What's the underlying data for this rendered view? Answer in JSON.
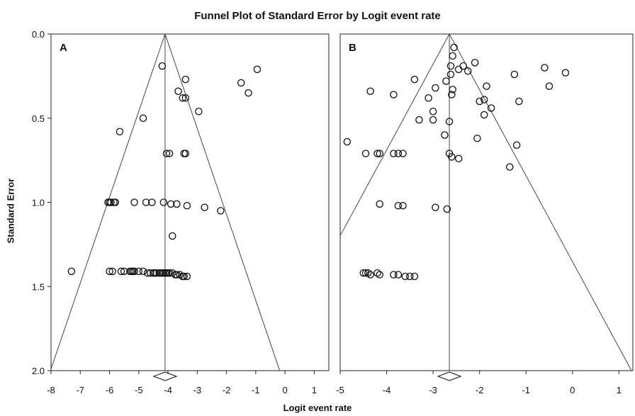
{
  "chart_data": {
    "type": "scatter",
    "title": "Funnel Plot of Standard Error by Logit event rate",
    "xlabel": "Logit event rate",
    "ylabel": "Standard Error",
    "ylim": [
      0.0,
      2.0
    ],
    "y_reversed": true,
    "y_ticks": [
      "0.0",
      "0.5",
      "1.0",
      "1.5",
      "2.0"
    ],
    "grid": false,
    "panels": [
      {
        "label": "A",
        "xlim": [
          -8,
          1.5
        ],
        "x_ticks": [
          "-8",
          "-7",
          "-6",
          "-5",
          "-4",
          "-3",
          "-2",
          "-1",
          "0",
          "1"
        ],
        "tick_values": [
          -8,
          -7,
          -6,
          -5,
          -4,
          -3,
          -2,
          -1,
          0,
          1
        ],
        "pooled_estimate": -4.1,
        "points": [
          [
            -4.2,
            0.19
          ],
          [
            -3.4,
            0.27
          ],
          [
            -1.5,
            0.29
          ],
          [
            -0.95,
            0.21
          ],
          [
            -1.25,
            0.35
          ],
          [
            -3.65,
            0.34
          ],
          [
            -3.5,
            0.38
          ],
          [
            -3.4,
            0.38
          ],
          [
            -2.95,
            0.46
          ],
          [
            -4.85,
            0.5
          ],
          [
            -5.65,
            0.58
          ],
          [
            -4.05,
            0.71
          ],
          [
            -3.95,
            0.71
          ],
          [
            -3.45,
            0.71
          ],
          [
            -3.4,
            0.71
          ],
          [
            -6.05,
            1.0
          ],
          [
            -6.0,
            1.0
          ],
          [
            -5.95,
            1.0
          ],
          [
            -5.85,
            1.0
          ],
          [
            -5.8,
            1.0
          ],
          [
            -5.15,
            1.0
          ],
          [
            -4.75,
            1.0
          ],
          [
            -4.55,
            1.0
          ],
          [
            -4.15,
            1.0
          ],
          [
            -3.9,
            1.01
          ],
          [
            -3.7,
            1.01
          ],
          [
            -3.35,
            1.02
          ],
          [
            -2.75,
            1.03
          ],
          [
            -2.2,
            1.05
          ],
          [
            -3.85,
            1.2
          ],
          [
            -7.3,
            1.41
          ],
          [
            -6.0,
            1.41
          ],
          [
            -5.9,
            1.41
          ],
          [
            -5.6,
            1.41
          ],
          [
            -5.5,
            1.41
          ],
          [
            -5.3,
            1.41
          ],
          [
            -5.25,
            1.41
          ],
          [
            -5.2,
            1.41
          ],
          [
            -5.15,
            1.41
          ],
          [
            -5.0,
            1.41
          ],
          [
            -4.85,
            1.41
          ],
          [
            -4.7,
            1.42
          ],
          [
            -4.6,
            1.42
          ],
          [
            -4.5,
            1.42
          ],
          [
            -4.45,
            1.42
          ],
          [
            -4.4,
            1.42
          ],
          [
            -4.3,
            1.42
          ],
          [
            -4.25,
            1.42
          ],
          [
            -4.2,
            1.42
          ],
          [
            -4.15,
            1.42
          ],
          [
            -4.1,
            1.42
          ],
          [
            -4.05,
            1.42
          ],
          [
            -4.0,
            1.42
          ],
          [
            -3.95,
            1.42
          ],
          [
            -3.85,
            1.42
          ],
          [
            -3.75,
            1.43
          ],
          [
            -3.7,
            1.43
          ],
          [
            -3.6,
            1.43
          ],
          [
            -3.5,
            1.44
          ],
          [
            -3.45,
            1.44
          ],
          [
            -3.35,
            1.44
          ]
        ]
      },
      {
        "label": "B",
        "xlim": [
          -5,
          1.3
        ],
        "x_ticks": [
          "-5",
          "-4",
          "-3",
          "-2",
          "-1",
          "0",
          "1"
        ],
        "tick_values": [
          -5,
          -4,
          -3,
          -2,
          -1,
          0,
          1
        ],
        "pooled_estimate": -2.65,
        "points": [
          [
            -2.55,
            0.08
          ],
          [
            -2.58,
            0.13
          ],
          [
            -2.62,
            0.19
          ],
          [
            -2.35,
            0.19
          ],
          [
            -2.1,
            0.17
          ],
          [
            -2.25,
            0.22
          ],
          [
            -2.45,
            0.21
          ],
          [
            -2.62,
            0.24
          ],
          [
            -2.72,
            0.28
          ],
          [
            -3.4,
            0.27
          ],
          [
            -2.58,
            0.33
          ],
          [
            -2.6,
            0.36
          ],
          [
            -2.95,
            0.32
          ],
          [
            -3.1,
            0.38
          ],
          [
            -2.0,
            0.4
          ],
          [
            -1.9,
            0.39
          ],
          [
            -1.85,
            0.31
          ],
          [
            -1.9,
            0.48
          ],
          [
            -1.75,
            0.44
          ],
          [
            -1.25,
            0.24
          ],
          [
            -0.6,
            0.2
          ],
          [
            -0.5,
            0.31
          ],
          [
            -0.15,
            0.23
          ],
          [
            -1.15,
            0.4
          ],
          [
            -4.35,
            0.34
          ],
          [
            -3.85,
            0.36
          ],
          [
            -3.0,
            0.46
          ],
          [
            -3.0,
            0.51
          ],
          [
            -3.3,
            0.51
          ],
          [
            -2.65,
            0.52
          ],
          [
            -2.75,
            0.6
          ],
          [
            -2.05,
            0.62
          ],
          [
            -1.2,
            0.66
          ],
          [
            -1.35,
            0.79
          ],
          [
            -4.85,
            0.64
          ],
          [
            -4.45,
            0.71
          ],
          [
            -4.2,
            0.71
          ],
          [
            -4.15,
            0.71
          ],
          [
            -3.85,
            0.71
          ],
          [
            -3.75,
            0.71
          ],
          [
            -3.65,
            0.71
          ],
          [
            -2.65,
            0.71
          ],
          [
            -2.6,
            0.73
          ],
          [
            -2.45,
            0.74
          ],
          [
            -4.15,
            1.01
          ],
          [
            -3.75,
            1.02
          ],
          [
            -3.65,
            1.02
          ],
          [
            -2.95,
            1.03
          ],
          [
            -2.7,
            1.04
          ],
          [
            -4.5,
            1.42
          ],
          [
            -4.45,
            1.42
          ],
          [
            -4.4,
            1.42
          ],
          [
            -4.35,
            1.43
          ],
          [
            -4.2,
            1.42
          ],
          [
            -4.15,
            1.43
          ],
          [
            -3.85,
            1.43
          ],
          [
            -3.75,
            1.43
          ],
          [
            -3.6,
            1.44
          ],
          [
            -3.5,
            1.44
          ],
          [
            -3.4,
            1.44
          ]
        ]
      }
    ]
  }
}
